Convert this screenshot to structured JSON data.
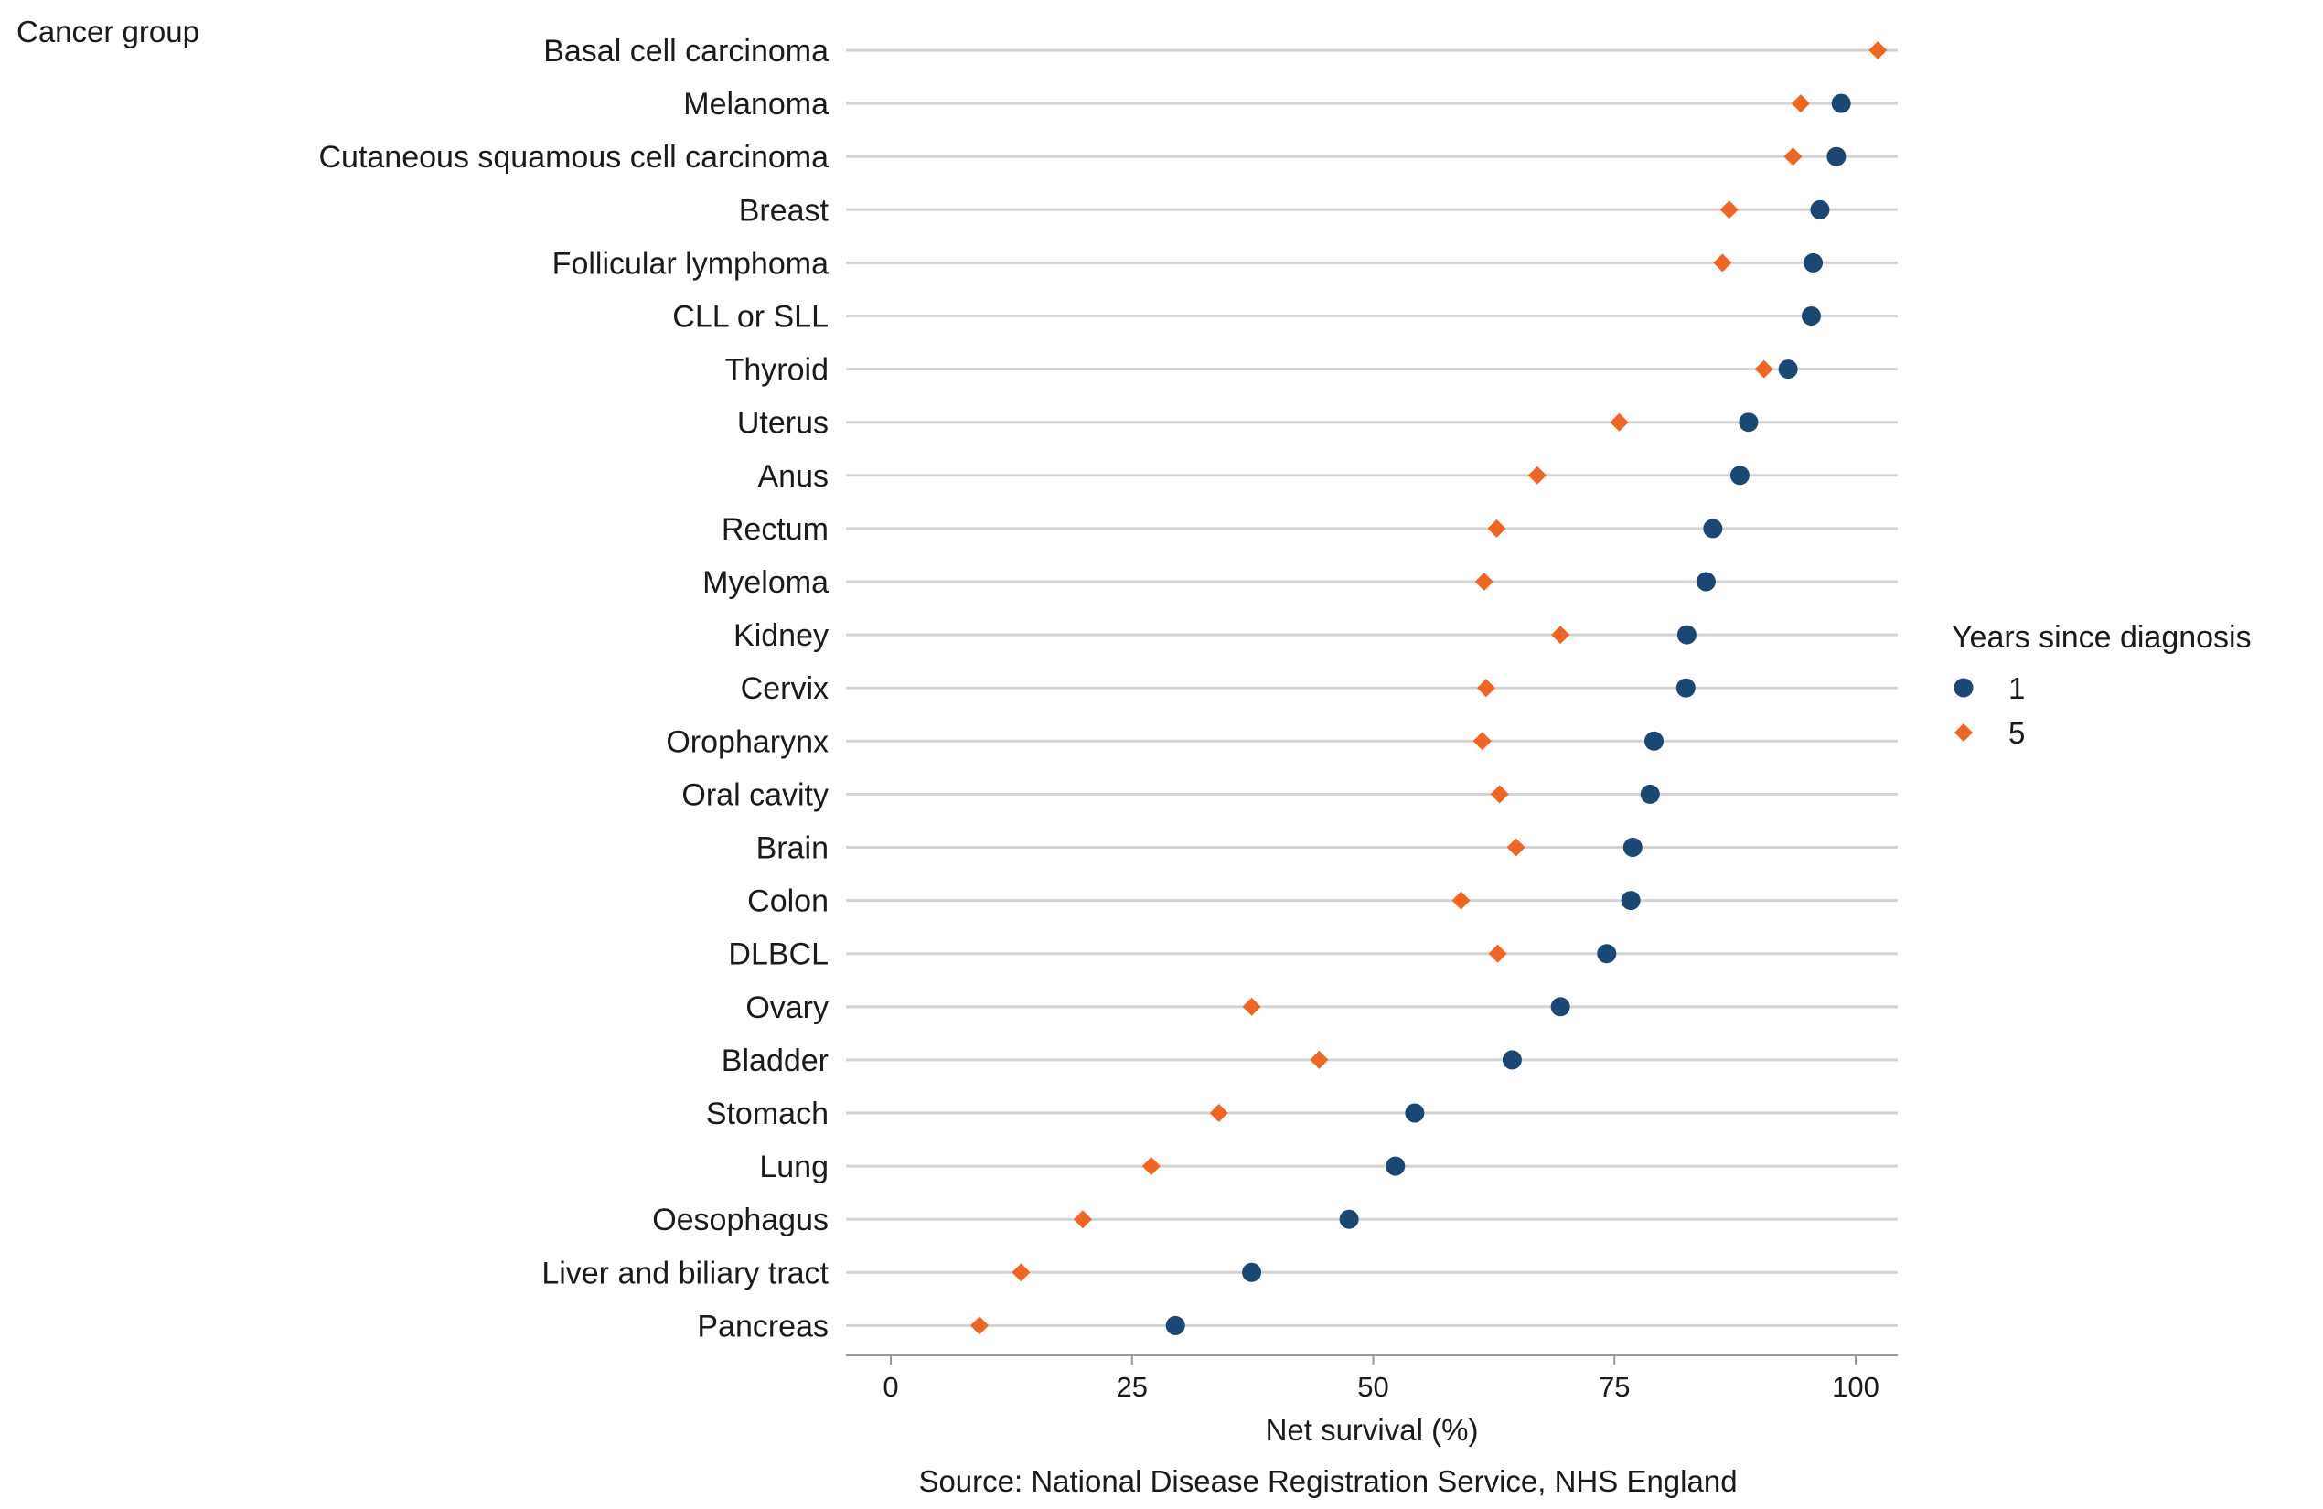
{
  "chart_data": {
    "type": "scatter",
    "title": "",
    "y_axis_label": "Cancer group",
    "xlabel": "Net survival (%)",
    "source": "Source: National Disease Registration Service, NHS England",
    "xlim": [
      -5,
      108
    ],
    "x_ticks": [
      0,
      25,
      50,
      75,
      100
    ],
    "grid": "horizontal",
    "legend": {
      "title": "Years since diagnosis",
      "placement": "right",
      "entries": [
        "1",
        "5"
      ]
    },
    "categories": [
      "Basal cell carcinoma",
      "Melanoma",
      "Cutaneous squamous cell carcinoma",
      "Breast",
      "Follicular lymphoma",
      "CLL or SLL",
      "Thyroid",
      "Uterus",
      "Anus",
      "Rectum",
      "Myeloma",
      "Kidney",
      "Cervix",
      "Oropharynx",
      "Oral cavity",
      "Brain",
      "Colon",
      "DLBCL",
      "Ovary",
      "Bladder",
      "Stomach",
      "Lung",
      "Oesophagus",
      "Liver and biliary tract",
      "Pancreas"
    ],
    "series": [
      {
        "name": "1",
        "marker": "circle",
        "color": "#1b4872",
        "values": [
          null,
          98.5,
          98.0,
          96.3,
          95.6,
          95.4,
          93.0,
          88.9,
          88.0,
          85.2,
          84.5,
          82.5,
          82.4,
          79.1,
          78.7,
          76.9,
          76.7,
          74.2,
          69.4,
          64.4,
          54.3,
          52.3,
          47.5,
          37.4,
          29.5
        ]
      },
      {
        "name": "5",
        "marker": "diamond",
        "color": "#f06522",
        "values": [
          102.3,
          94.3,
          93.5,
          86.9,
          86.2,
          null,
          90.5,
          75.5,
          67.0,
          62.8,
          61.5,
          69.4,
          61.7,
          61.3,
          63.1,
          64.8,
          59.1,
          62.9,
          37.4,
          44.4,
          34.0,
          27.0,
          19.9,
          13.5,
          9.2
        ]
      }
    ]
  }
}
